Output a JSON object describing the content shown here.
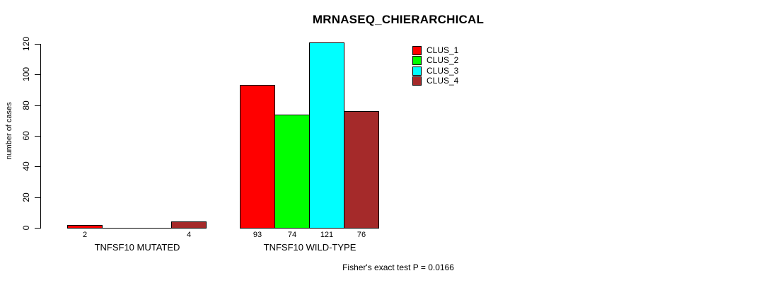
{
  "chart_data": {
    "type": "bar",
    "title": "MRNASEQ_CHIERARCHICAL",
    "ylabel": "number of cases",
    "xlabel": "",
    "ylim": [
      0,
      120
    ],
    "yticks": [
      0,
      20,
      40,
      60,
      80,
      100,
      120
    ],
    "ytick_labels": [
      "0",
      "20",
      "40",
      "60",
      "80",
      "100",
      "120"
    ],
    "grid": false,
    "legend_position": "top-right",
    "categories": [
      "TNFSF10 MUTATED",
      "TNFSF10 WILD-TYPE"
    ],
    "series": [
      {
        "name": "CLUS_1",
        "color": "#ff0000",
        "values": [
          2,
          93
        ]
      },
      {
        "name": "CLUS_2",
        "color": "#00ff00",
        "values": [
          0,
          74
        ]
      },
      {
        "name": "CLUS_3",
        "color": "#00ffff",
        "values": [
          0,
          121
        ]
      },
      {
        "name": "CLUS_4",
        "color": "#a52a2a",
        "values": [
          4,
          76
        ]
      }
    ],
    "bar_value_labels": [
      [
        "2",
        "",
        "",
        "4"
      ],
      [
        "93",
        "74",
        "121",
        "76"
      ]
    ],
    "annotation": "Fisher's exact test P = 0.0166"
  },
  "colors": {
    "background": "#ffffff",
    "text": "#000000",
    "axis": "#000000"
  }
}
